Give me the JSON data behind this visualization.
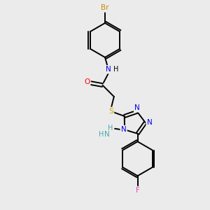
{
  "background_color": "#ebebeb",
  "bond_color": "#000000",
  "atom_colors": {
    "Br": "#cc8800",
    "N": "#0000ee",
    "N_nh": "#44aaaa",
    "O": "#ff0000",
    "S": "#ccaa00",
    "F": "#ee44aa",
    "C": "#000000",
    "H": "#000000"
  },
  "title": "",
  "figsize": [
    3.0,
    3.0
  ],
  "dpi": 100
}
